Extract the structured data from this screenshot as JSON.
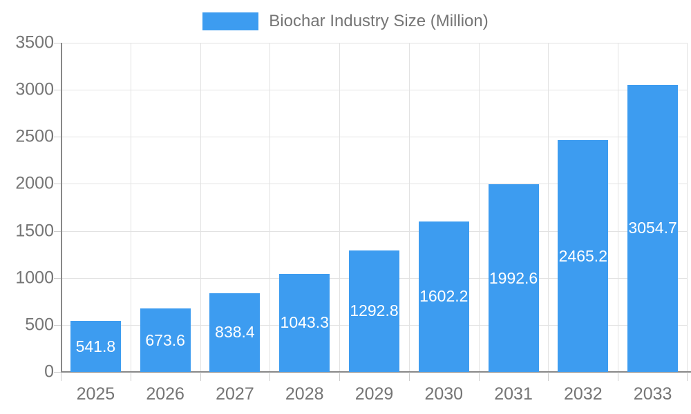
{
  "legend": {
    "items": [
      {
        "label": "Biochar Industry Size (Million)",
        "color": "#3D9CF0"
      }
    ],
    "position": "top-center"
  },
  "chart_data": {
    "type": "bar",
    "title": "",
    "series_name": "Biochar Industry Size (Million)",
    "categories": [
      "2025",
      "2026",
      "2027",
      "2028",
      "2029",
      "2030",
      "2031",
      "2032",
      "2033"
    ],
    "values": [
      541.8,
      673.6,
      838.4,
      1043.3,
      1292.8,
      1602.2,
      1992.6,
      2465.2,
      3054.7
    ],
    "xlabel": "",
    "ylabel": "",
    "ylim": [
      0,
      3500
    ],
    "yticks": [
      0,
      500,
      1000,
      1500,
      2000,
      2500,
      3000,
      3500
    ],
    "grid": true,
    "legend_position": "top",
    "bar_color": "#3D9CF0",
    "bar_label_color": "#FFFFFF",
    "axis_text_color": "#757575",
    "axis_line_color": "#888888",
    "gridline_color": "#E2E2E2",
    "tick_color": "#CCCCCC"
  }
}
